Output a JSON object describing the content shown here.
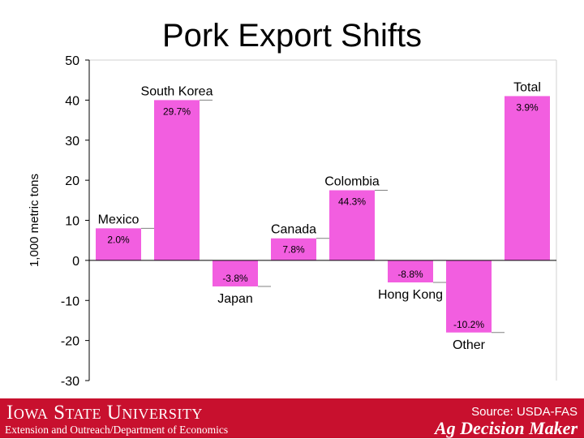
{
  "chart_data": {
    "type": "bar",
    "title": "Pork Export Shifts",
    "ylabel": "1,000 metric tons",
    "ylim": [
      -30,
      50
    ],
    "yticks": [
      -30,
      -20,
      -10,
      0,
      10,
      20,
      30,
      40,
      50
    ],
    "grid": false,
    "categories": [
      "Mexico",
      "South Korea",
      "Japan",
      "Canada",
      "Colombia",
      "Hong Kong",
      "Other",
      "Total"
    ],
    "values": [
      8,
      40,
      -6.5,
      5.5,
      17.5,
      -5.5,
      -18,
      41
    ],
    "data_labels": [
      "2.0%",
      "29.7%",
      "-3.8%",
      "7.8%",
      "44.3%",
      "-8.8%",
      "-10.2%",
      "3.9%"
    ],
    "bar_color": "#f25ee0"
  },
  "footer": {
    "university": "Iowa State University",
    "department": "Extension and Outreach/Department of Economics",
    "source": "Source: USDA-FAS",
    "brand": "Ag Decision Maker",
    "color": "#c8102e"
  }
}
